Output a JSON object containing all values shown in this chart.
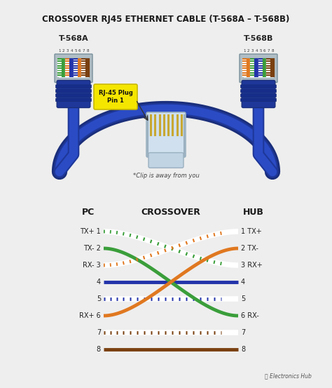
{
  "title": "CROSSOVER RJ45 ETHERNET CABLE (T-568A – T-568B)",
  "bg_color": "#eeeeee",
  "title_color": "#1a1a1a",
  "cable_color_dark": "#1a2e7a",
  "cable_color_mid": "#1e3799",
  "cable_color_light": "#2a4bc4",
  "label_568a": "T-568A",
  "label_568b": "T-568B",
  "plug_label": "RJ-45 Plug\nPin 1",
  "clip_text": "*Clip is away from you",
  "pc_label": "PC",
  "hub_label": "HUB",
  "crossover_label": "CROSSOVER",
  "watermark": "Electronics Hub",
  "568a_colors": [
    "green_white",
    "green",
    "orange_white",
    "blue",
    "blue_white",
    "orange",
    "brown_white",
    "brown"
  ],
  "568b_colors": [
    "orange_white",
    "orange",
    "green_white",
    "blue",
    "blue_white",
    "green",
    "brown_white",
    "brown"
  ],
  "pc_labels": [
    "TX+ 1",
    "TX- 2",
    "RX- 3",
    "4",
    "5",
    "RX+ 6",
    "7",
    "8"
  ],
  "hub_labels": [
    "1 TX+",
    "2 TX-",
    "3 RX+",
    "4",
    "5",
    "6 RX-",
    "7",
    "8"
  ],
  "connections": [
    [
      0,
      2,
      "#3a9e3a",
      true
    ],
    [
      1,
      5,
      "#3a9e3a",
      false
    ],
    [
      2,
      0,
      "#e07820",
      true
    ],
    [
      3,
      3,
      "#2233aa",
      false
    ],
    [
      4,
      4,
      "#2233aa",
      true
    ],
    [
      5,
      1,
      "#e07820",
      false
    ],
    [
      6,
      6,
      "#7a4010",
      true
    ],
    [
      7,
      7,
      "#7a4010",
      false
    ]
  ],
  "color_map": {
    "green_white": [
      "#3a9e3a",
      true
    ],
    "green": [
      "#3a9e3a",
      false
    ],
    "orange_white": [
      "#e07820",
      true
    ],
    "blue": [
      "#2233aa",
      false
    ],
    "blue_white": [
      "#2233aa",
      true
    ],
    "orange": [
      "#e07820",
      false
    ],
    "brown_white": [
      "#7a4010",
      true
    ],
    "brown": [
      "#7a4010",
      false
    ]
  }
}
